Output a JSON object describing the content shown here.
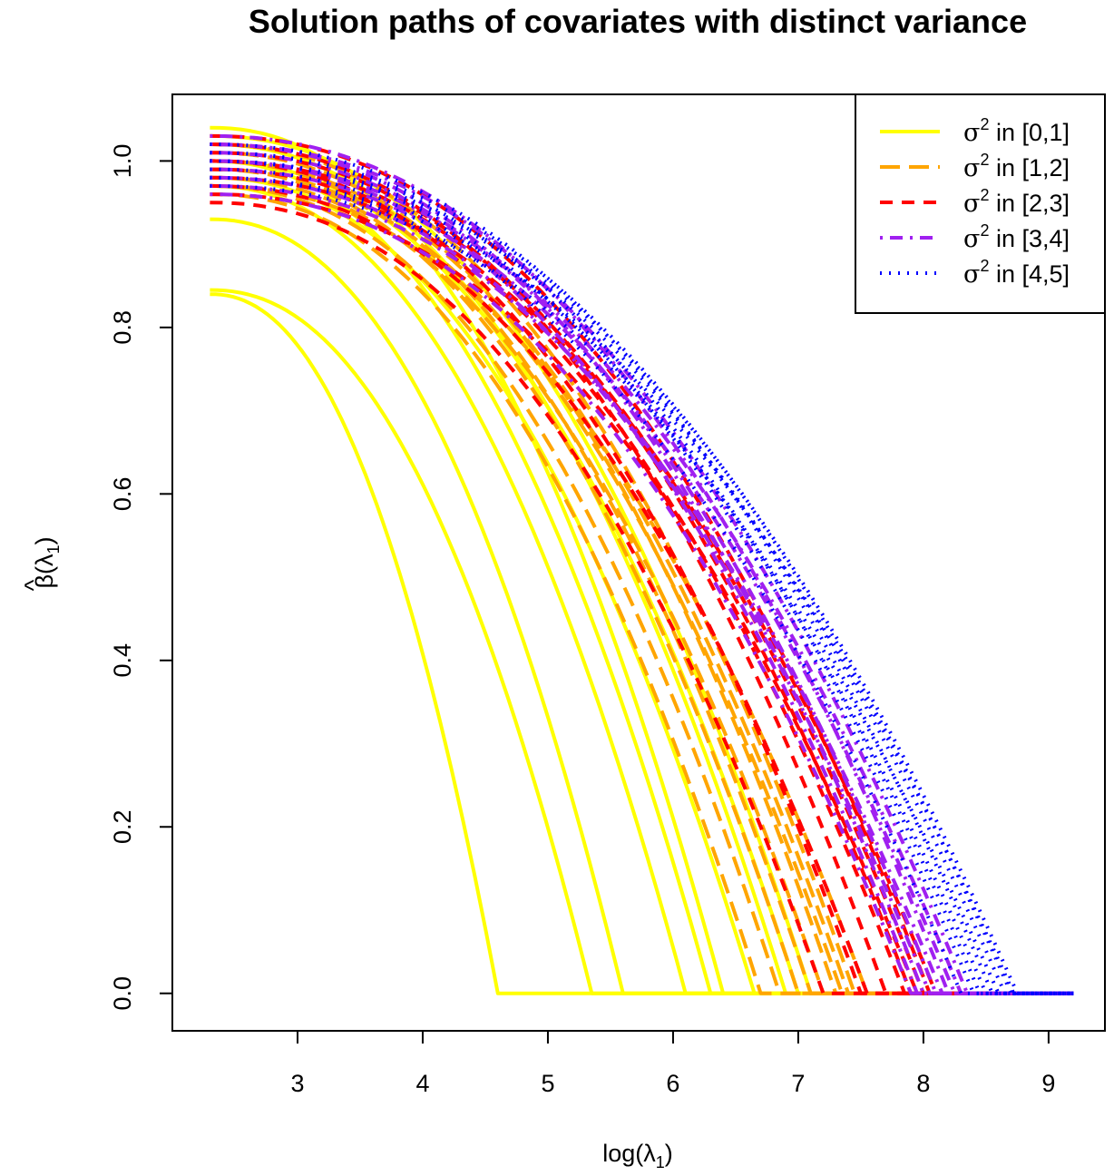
{
  "chart_data": {
    "type": "line",
    "title": "Solution paths of covariates with distinct variance",
    "xlabel": {
      "base": "log(λ",
      "sub": "1",
      "close": ")"
    },
    "ylabel": {
      "hat": "^",
      "symbol": "β(λ",
      "sub": "1",
      "close": ")"
    },
    "xlim": [
      2.3,
      9.2
    ],
    "ylim": [
      0,
      1.05
    ],
    "x_ticks": [
      {
        "value": 3,
        "label": "3"
      },
      {
        "value": 4,
        "label": "4"
      },
      {
        "value": 5,
        "label": "5"
      },
      {
        "value": 6,
        "label": "6"
      },
      {
        "value": 7,
        "label": "7"
      },
      {
        "value": 8,
        "label": "8"
      },
      {
        "value": 9,
        "label": "9"
      }
    ],
    "y_ticks": [
      {
        "value": 0.0,
        "label": "0.0"
      },
      {
        "value": 0.2,
        "label": "0.2"
      },
      {
        "value": 0.4,
        "label": "0.4"
      },
      {
        "value": 0.6,
        "label": "0.6"
      },
      {
        "value": 0.8,
        "label": "0.8"
      },
      {
        "value": 1.0,
        "label": "1.0"
      }
    ],
    "grid": false,
    "legend_position": "top-right",
    "series": [
      {
        "name": "σ² in [0,1]",
        "legend_symbol": "σ",
        "legend_sup": "2",
        "legend_rest": " in [0,1]",
        "color": "#FFFF00",
        "line_style": "solid",
        "paths": [
          {
            "y0": 0.84,
            "zero_at": 4.6
          },
          {
            "y0": 0.845,
            "zero_at": 5.35
          },
          {
            "y0": 0.93,
            "zero_at": 5.6
          },
          {
            "y0": 0.97,
            "zero_at": 6.1
          },
          {
            "y0": 1.0,
            "zero_at": 6.3
          },
          {
            "y0": 1.04,
            "zero_at": 6.4
          },
          {
            "y0": 0.98,
            "zero_at": 6.65
          },
          {
            "y0": 1.02,
            "zero_at": 6.9
          },
          {
            "y0": 1.0,
            "zero_at": 7.0
          },
          {
            "y0": 1.03,
            "zero_at": 7.1
          }
        ]
      },
      {
        "name": "σ² in [1,2]",
        "legend_symbol": "σ",
        "legend_sup": "2",
        "legend_rest": " in [1,2]",
        "color": "#FFA500",
        "line_style": "longdash",
        "paths": [
          {
            "y0": 0.96,
            "zero_at": 6.7
          },
          {
            "y0": 0.97,
            "zero_at": 6.85
          },
          {
            "y0": 0.99,
            "zero_at": 7.0
          },
          {
            "y0": 1.0,
            "zero_at": 7.1
          },
          {
            "y0": 0.98,
            "zero_at": 7.2
          },
          {
            "y0": 1.01,
            "zero_at": 7.3
          },
          {
            "y0": 0.99,
            "zero_at": 7.35
          },
          {
            "y0": 1.0,
            "zero_at": 7.4
          },
          {
            "y0": 1.02,
            "zero_at": 7.45
          },
          {
            "y0": 0.97,
            "zero_at": 7.55
          }
        ]
      },
      {
        "name": "σ² in [2,3]",
        "legend_symbol": "σ",
        "legend_sup": "2",
        "legend_rest": " in [2,3]",
        "color": "#FF0000",
        "line_style": "dashed",
        "paths": [
          {
            "y0": 0.95,
            "zero_at": 7.2
          },
          {
            "y0": 1.0,
            "zero_at": 7.5
          },
          {
            "y0": 0.97,
            "zero_at": 7.55
          },
          {
            "y0": 1.02,
            "zero_at": 7.7
          },
          {
            "y0": 0.99,
            "zero_at": 7.85
          },
          {
            "y0": 1.01,
            "zero_at": 7.9
          },
          {
            "y0": 0.96,
            "zero_at": 7.95
          },
          {
            "y0": 1.0,
            "zero_at": 8.0
          },
          {
            "y0": 1.03,
            "zero_at": 8.05
          },
          {
            "y0": 0.98,
            "zero_at": 8.1
          }
        ]
      },
      {
        "name": "σ² in [3,4]",
        "legend_symbol": "σ",
        "legend_sup": "2",
        "legend_rest": " in [3,4]",
        "color": "#A020F0",
        "line_style": "dotdash",
        "paths": [
          {
            "y0": 0.96,
            "zero_at": 7.9
          },
          {
            "y0": 1.0,
            "zero_at": 7.95
          },
          {
            "y0": 1.02,
            "zero_at": 8.0
          },
          {
            "y0": 0.98,
            "zero_at": 8.05
          },
          {
            "y0": 1.01,
            "zero_at": 8.1
          },
          {
            "y0": 0.97,
            "zero_at": 8.15
          },
          {
            "y0": 1.03,
            "zero_at": 8.2
          },
          {
            "y0": 0.99,
            "zero_at": 8.25
          },
          {
            "y0": 1.0,
            "zero_at": 8.3
          },
          {
            "y0": 1.02,
            "zero_at": 8.35
          }
        ]
      },
      {
        "name": "σ² in [4,5]",
        "legend_symbol": "σ",
        "legend_sup": "2",
        "legend_rest": " in [4,5]",
        "color": "#0000FF",
        "line_style": "dotted",
        "paths": [
          {
            "y0": 0.98,
            "zero_at": 8.3
          },
          {
            "y0": 1.0,
            "zero_at": 8.4
          },
          {
            "y0": 1.01,
            "zero_at": 8.45
          },
          {
            "y0": 0.99,
            "zero_at": 8.5
          },
          {
            "y0": 1.02,
            "zero_at": 8.55
          },
          {
            "y0": 0.97,
            "zero_at": 8.6
          },
          {
            "y0": 1.0,
            "zero_at": 8.65
          },
          {
            "y0": 1.01,
            "zero_at": 8.7
          },
          {
            "y0": 0.98,
            "zero_at": 8.72
          },
          {
            "y0": 1.0,
            "zero_at": 8.75
          }
        ]
      }
    ]
  }
}
